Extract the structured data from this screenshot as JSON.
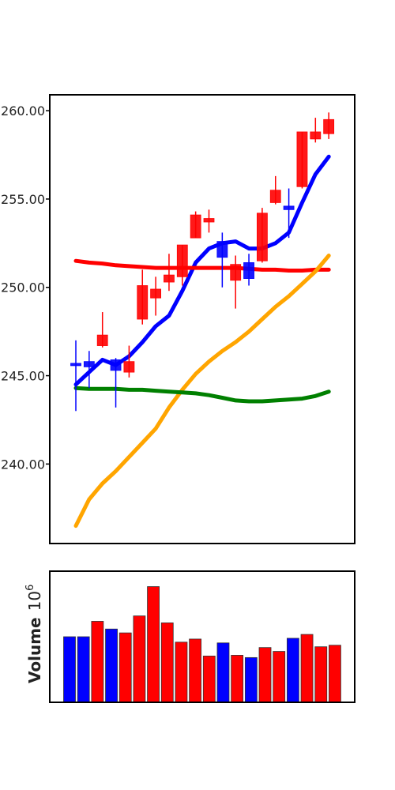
{
  "chart_data": [
    {
      "type": "candlestick",
      "title": "",
      "xlabel": "",
      "ylabel": "",
      "ylim": [
        235.5,
        260.9
      ],
      "y_tick_labels": [
        "240.00",
        "245.00",
        "250.00",
        "255.00",
        "260.00"
      ],
      "y_ticks": [
        240,
        245,
        250,
        255,
        260
      ],
      "colors": {
        "up": "#ff0000",
        "down": "#0000ff"
      },
      "candles": [
        {
          "open": 245.7,
          "close": 245.7,
          "high": 247.0,
          "low": 243.0,
          "direction": "down"
        },
        {
          "open": 245.8,
          "close": 245.5,
          "high": 246.4,
          "low": 244.3,
          "direction": "down"
        },
        {
          "open": 246.7,
          "close": 247.3,
          "high": 248.6,
          "low": 246.6,
          "direction": "up"
        },
        {
          "open": 245.9,
          "close": 245.3,
          "high": 246.0,
          "low": 243.2,
          "direction": "down"
        },
        {
          "open": 245.2,
          "close": 245.8,
          "high": 246.7,
          "low": 244.9,
          "direction": "up"
        },
        {
          "open": 248.2,
          "close": 250.1,
          "high": 251.0,
          "low": 247.9,
          "direction": "up"
        },
        {
          "open": 249.4,
          "close": 249.9,
          "high": 250.6,
          "low": 248.4,
          "direction": "up"
        },
        {
          "open": 250.3,
          "close": 250.7,
          "high": 251.9,
          "low": 249.8,
          "direction": "up"
        },
        {
          "open": 250.6,
          "close": 252.4,
          "high": 252.4,
          "low": 250.1,
          "direction": "up"
        },
        {
          "open": 252.8,
          "close": 254.1,
          "high": 254.3,
          "low": 252.8,
          "direction": "up"
        },
        {
          "open": 253.7,
          "close": 253.9,
          "high": 254.4,
          "low": 253.1,
          "direction": "up"
        },
        {
          "open": 252.6,
          "close": 251.7,
          "high": 253.1,
          "low": 250.0,
          "direction": "down"
        },
        {
          "open": 250.4,
          "close": 251.3,
          "high": 251.8,
          "low": 248.8,
          "direction": "up"
        },
        {
          "open": 251.4,
          "close": 250.5,
          "high": 251.9,
          "low": 250.1,
          "direction": "down"
        },
        {
          "open": 251.5,
          "close": 254.2,
          "high": 254.5,
          "low": 251.4,
          "direction": "up"
        },
        {
          "open": 254.8,
          "close": 255.5,
          "high": 256.3,
          "low": 254.7,
          "direction": "up"
        },
        {
          "open": 254.6,
          "close": 254.4,
          "high": 255.6,
          "low": 252.8,
          "direction": "down"
        },
        {
          "open": 255.7,
          "close": 258.8,
          "high": 258.8,
          "low": 255.6,
          "direction": "up"
        },
        {
          "open": 258.4,
          "close": 258.8,
          "high": 259.6,
          "low": 258.2,
          "direction": "up"
        },
        {
          "open": 258.7,
          "close": 259.5,
          "high": 259.9,
          "low": 258.4,
          "direction": "up"
        }
      ],
      "lines": [
        {
          "color": "#0000ff",
          "values": [
            244.5,
            245.2,
            245.9,
            245.6,
            246.1,
            246.9,
            247.8,
            248.4,
            249.8,
            251.4,
            252.2,
            252.5,
            252.6,
            252.2,
            252.2,
            252.5,
            253.1,
            254.8,
            256.4,
            257.4
          ]
        },
        {
          "color": "#ff0000",
          "values": [
            251.5,
            251.4,
            251.35,
            251.25,
            251.2,
            251.15,
            251.1,
            251.1,
            251.1,
            251.1,
            251.1,
            251.1,
            251.1,
            251.05,
            251.0,
            251.0,
            250.95,
            250.95,
            251.0,
            251.0
          ]
        },
        {
          "color": "#ffa500",
          "values": [
            236.5,
            238.0,
            238.9,
            239.6,
            240.4,
            241.2,
            242.0,
            243.2,
            244.2,
            245.1,
            245.8,
            246.4,
            246.9,
            247.5,
            248.2,
            248.9,
            249.5,
            250.2,
            250.9,
            251.8
          ]
        },
        {
          "color": "#008000",
          "values": [
            244.3,
            244.25,
            244.25,
            244.25,
            244.2,
            244.2,
            244.15,
            244.1,
            244.05,
            244.0,
            243.9,
            243.75,
            243.6,
            243.55,
            243.55,
            243.6,
            243.65,
            243.7,
            243.85,
            244.1
          ]
        }
      ]
    },
    {
      "type": "bar",
      "title": "",
      "ylabel": "Volume",
      "ylabel_exponent": "10",
      "ylabel_power": "6",
      "ylim": [
        0,
        1.7
      ],
      "values": [
        0.85,
        0.85,
        1.05,
        0.95,
        0.9,
        1.12,
        1.5,
        1.03,
        0.78,
        0.82,
        0.6,
        0.77,
        0.61,
        0.58,
        0.71,
        0.66,
        0.83,
        0.88,
        0.72,
        0.74
      ],
      "bar_colors": [
        "down",
        "down",
        "up",
        "down",
        "up",
        "up",
        "up",
        "up",
        "up",
        "up",
        "up",
        "down",
        "up",
        "down",
        "up",
        "up",
        "down",
        "up",
        "up",
        "up"
      ],
      "colors": {
        "up": "#ff0000",
        "down": "#0000ff"
      }
    }
  ]
}
